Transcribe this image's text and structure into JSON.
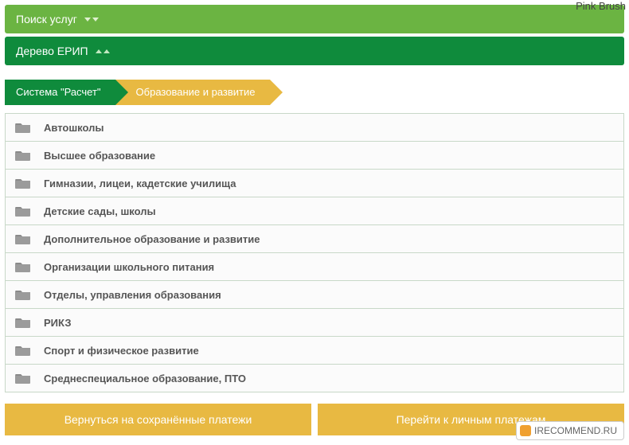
{
  "watermark_top": "Pink Brush",
  "watermark_bottom": "IRECOMMEND.RU",
  "header": {
    "search_label": "Поиск услуг",
    "tree_label": "Дерево ЕРИП"
  },
  "breadcrumb": [
    {
      "label": "Система \"Расчет\"",
      "color": "green"
    },
    {
      "label": "Образование и развитие",
      "color": "yellow"
    }
  ],
  "categories": [
    {
      "label": "Автошколы"
    },
    {
      "label": "Высшее образование"
    },
    {
      "label": "Гимназии, лицеи, кадетские училища"
    },
    {
      "label": "Детские сады, школы"
    },
    {
      "label": "Дополнительное образование и развитие"
    },
    {
      "label": "Организации школьного питания"
    },
    {
      "label": "Отделы, управления образования"
    },
    {
      "label": "РИКЗ"
    },
    {
      "label": "Спорт и физическое развитие"
    },
    {
      "label": "Среднеспециальное образование, ПТО"
    }
  ],
  "buttons": {
    "back_saved": "Вернуться на сохранённые платежи",
    "personal": "Перейти к личным платежам"
  },
  "colors": {
    "header_search_bg": "#6bb442",
    "header_tree_bg": "#0f8b3c",
    "crumb_green": "#0f8b3c",
    "crumb_yellow": "#e8b942",
    "button_bg": "#e8b942",
    "item_border": "#c8d8c8",
    "item_text": "#565656",
    "folder_fill": "#9b9b9b"
  }
}
